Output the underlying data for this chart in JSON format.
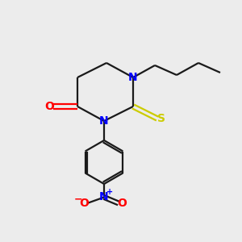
{
  "background_color": "#ececec",
  "bond_color": "#1a1a1a",
  "N_color": "#0000ff",
  "O_color": "#ff0000",
  "S_color": "#cccc00",
  "font_size": 10,
  "figsize": [
    3.0,
    3.0
  ],
  "dpi": 100,
  "xlim": [
    0,
    10
  ],
  "ylim": [
    0,
    10
  ],
  "lw": 1.6
}
